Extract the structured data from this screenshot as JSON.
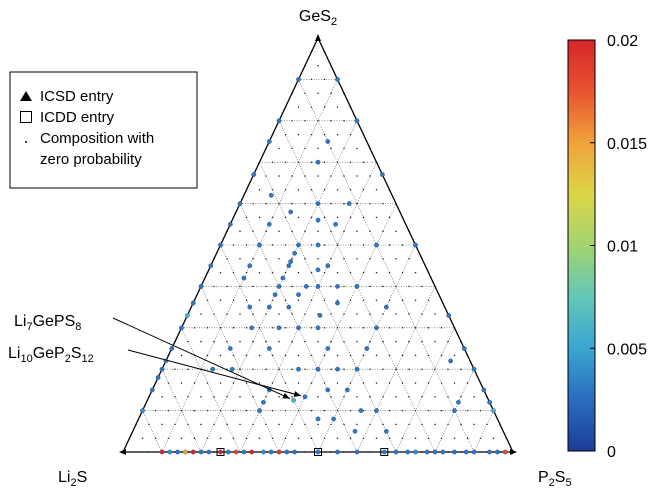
{
  "chart_data": {
    "type": "scatter",
    "subtype": "ternary",
    "vertices": {
      "top": {
        "main": "GeS",
        "sub": "2",
        "tail": ""
      },
      "left": {
        "main": "Li",
        "sub": "2",
        "tail": "S"
      },
      "right": {
        "main": "P",
        "sub": "2",
        "tail": "S",
        "sub2": "5"
      }
    },
    "grid": true,
    "grid_divisions": 10,
    "zero_probability_grid_divisions": 30,
    "legend": {
      "placement": "top-left",
      "entries": [
        {
          "marker": "triangle",
          "text": "ICSD entry"
        },
        {
          "marker": "square",
          "text": "ICDD entry"
        },
        {
          "marker": "dot",
          "text": "Composition with"
        },
        {
          "marker": "none",
          "text": "zero probability"
        }
      ]
    },
    "colorbar": {
      "range": [
        0,
        0.02
      ],
      "ticks": [
        "0.02",
        "0.015",
        "0.01",
        "0.005",
        "0"
      ],
      "tick_values": [
        0.02,
        0.015,
        0.01,
        0.005,
        0
      ],
      "colormap": "jet",
      "colors": [
        "#1c3c97",
        "#2b6dc0",
        "#3aa5d0",
        "#63c7b9",
        "#a3d46e",
        "#dcd648",
        "#f0a23c",
        "#e8532f",
        "#d7262b"
      ]
    },
    "annotations": [
      {
        "parts": [
          [
            "Li",
            ""
          ],
          [
            "7",
            "sub"
          ],
          [
            "GePS",
            ""
          ],
          [
            "8",
            "sub"
          ]
        ],
        "target": [
          0.5,
          0.125,
          0.375
        ]
      },
      {
        "parts": [
          [
            "Li",
            ""
          ],
          [
            "10",
            "sub"
          ],
          [
            "GeP",
            ""
          ],
          [
            "2",
            "sub"
          ],
          [
            "S",
            ""
          ],
          [
            "12",
            "sub"
          ]
        ],
        "target": [
          0.4667,
          0.1333,
          0.4
        ]
      }
    ],
    "points_note": "each point: [Li2S fraction, GeS2 fraction, P2S5 fraction, probability]",
    "points": [
      [
        0.9,
        0.0,
        0.1,
        0.02
      ],
      [
        0.88,
        0.0,
        0.12,
        0.004
      ],
      [
        0.86,
        0.0,
        0.14,
        0.003
      ],
      [
        0.84,
        0.0,
        0.16,
        0.015
      ],
      [
        0.82,
        0.0,
        0.18,
        0.02
      ],
      [
        0.8,
        0.0,
        0.2,
        0.003
      ],
      [
        0.78,
        0.0,
        0.22,
        0.003
      ],
      [
        0.75,
        0.0,
        0.25,
        0.02
      ],
      [
        0.73,
        0.0,
        0.27,
        0.003
      ],
      [
        0.71,
        0.0,
        0.29,
        0.018
      ],
      [
        0.69,
        0.0,
        0.31,
        0.003
      ],
      [
        0.67,
        0.0,
        0.33,
        0.02
      ],
      [
        0.64,
        0.0,
        0.36,
        0.004
      ],
      [
        0.62,
        0.0,
        0.38,
        0.003
      ],
      [
        0.6,
        0.0,
        0.4,
        0.019
      ],
      [
        0.58,
        0.0,
        0.42,
        0.003
      ],
      [
        0.56,
        0.0,
        0.44,
        0.003
      ],
      [
        0.5,
        0.0,
        0.5,
        0.003
      ],
      [
        0.45,
        0.0,
        0.55,
        0.003
      ],
      [
        0.4,
        0.0,
        0.6,
        0.003
      ],
      [
        0.33,
        0.0,
        0.67,
        0.003
      ],
      [
        0.3,
        0.0,
        0.7,
        0.003
      ],
      [
        0.27,
        0.0,
        0.73,
        0.003
      ],
      [
        0.25,
        0.0,
        0.75,
        0.004
      ],
      [
        0.22,
        0.0,
        0.78,
        0.003
      ],
      [
        0.2,
        0.0,
        0.8,
        0.003
      ],
      [
        0.18,
        0.0,
        0.82,
        0.003
      ],
      [
        0.15,
        0.0,
        0.85,
        0.003
      ],
      [
        0.12,
        0.0,
        0.88,
        0.003
      ],
      [
        0.1,
        0.0,
        0.9,
        0.003
      ],
      [
        0.06,
        0.0,
        0.94,
        0.003
      ],
      [
        0.04,
        0.0,
        0.96,
        0.003
      ],
      [
        0.02,
        0.0,
        0.98,
        0.018
      ],
      [
        0.9,
        0.1,
        0.0,
        0.004
      ],
      [
        0.85,
        0.15,
        0.0,
        0.003
      ],
      [
        0.82,
        0.18,
        0.0,
        0.003
      ],
      [
        0.8,
        0.2,
        0.0,
        0.003
      ],
      [
        0.78,
        0.22,
        0.0,
        0.004
      ],
      [
        0.75,
        0.25,
        0.0,
        0.003
      ],
      [
        0.7,
        0.3,
        0.0,
        0.003
      ],
      [
        0.67,
        0.33,
        0.0,
        0.006
      ],
      [
        0.64,
        0.36,
        0.0,
        0.003
      ],
      [
        0.6,
        0.4,
        0.0,
        0.003
      ],
      [
        0.55,
        0.45,
        0.0,
        0.003
      ],
      [
        0.5,
        0.5,
        0.0,
        0.003
      ],
      [
        0.45,
        0.55,
        0.0,
        0.003
      ],
      [
        0.4,
        0.6,
        0.0,
        0.003
      ],
      [
        0.33,
        0.67,
        0.0,
        0.003
      ],
      [
        0.25,
        0.75,
        0.0,
        0.003
      ],
      [
        0.2,
        0.8,
        0.0,
        0.003
      ],
      [
        0.1,
        0.9,
        0.0,
        0.003
      ],
      [
        0.0,
        0.1,
        0.9,
        0.006
      ],
      [
        0.0,
        0.12,
        0.88,
        0.003
      ],
      [
        0.0,
        0.15,
        0.85,
        0.003
      ],
      [
        0.0,
        0.2,
        0.8,
        0.003
      ],
      [
        0.0,
        0.25,
        0.75,
        0.003
      ],
      [
        0.0,
        0.33,
        0.67,
        0.003
      ],
      [
        0.0,
        0.5,
        0.5,
        0.003
      ],
      [
        0.0,
        0.67,
        0.33,
        0.003
      ],
      [
        0.0,
        0.8,
        0.2,
        0.003
      ],
      [
        0.0,
        0.9,
        0.1,
        0.003
      ],
      [
        0.67,
        0.2,
        0.13,
        0.003
      ],
      [
        0.62,
        0.2,
        0.18,
        0.003
      ],
      [
        0.6,
        0.25,
        0.15,
        0.003
      ],
      [
        0.6,
        0.1,
        0.3,
        0.003
      ],
      [
        0.58,
        0.12,
        0.3,
        0.003
      ],
      [
        0.55,
        0.15,
        0.3,
        0.003
      ],
      [
        0.5,
        0.125,
        0.375,
        0.006
      ],
      [
        0.4667,
        0.1333,
        0.4,
        0.003
      ],
      [
        0.5,
        0.25,
        0.25,
        0.003
      ],
      [
        0.52,
        0.3,
        0.18,
        0.003
      ],
      [
        0.5,
        0.35,
        0.15,
        0.003
      ],
      [
        0.45,
        0.35,
        0.2,
        0.003
      ],
      [
        0.45,
        0.3,
        0.25,
        0.003
      ],
      [
        0.42,
        0.38,
        0.2,
        0.003
      ],
      [
        0.4,
        0.4,
        0.2,
        0.003
      ],
      [
        0.4,
        0.35,
        0.25,
        0.003
      ],
      [
        0.4,
        0.3,
        0.3,
        0.003
      ],
      [
        0.38,
        0.42,
        0.2,
        0.003
      ],
      [
        0.35,
        0.45,
        0.2,
        0.003
      ],
      [
        0.36,
        0.38,
        0.26,
        0.003
      ],
      [
        0.35,
        0.3,
        0.35,
        0.003
      ],
      [
        0.33,
        0.33,
        0.34,
        0.003
      ],
      [
        0.33,
        0.4,
        0.27,
        0.003
      ],
      [
        0.32,
        0.48,
        0.2,
        0.003
      ],
      [
        0.3,
        0.5,
        0.2,
        0.003
      ],
      [
        0.3,
        0.4,
        0.3,
        0.003
      ],
      [
        0.28,
        0.44,
        0.28,
        0.003
      ],
      [
        0.27,
        0.36,
        0.37,
        0.003
      ],
      [
        0.25,
        0.5,
        0.25,
        0.003
      ],
      [
        0.25,
        0.4,
        0.35,
        0.003
      ],
      [
        0.25,
        0.45,
        0.3,
        0.003
      ],
      [
        0.22,
        0.56,
        0.22,
        0.003
      ],
      [
        0.2,
        0.6,
        0.2,
        0.003
      ],
      [
        0.2,
        0.4,
        0.4,
        0.003
      ],
      [
        0.2,
        0.3,
        0.5,
        0.003
      ],
      [
        0.18,
        0.55,
        0.27,
        0.003
      ],
      [
        0.15,
        0.7,
        0.15,
        0.003
      ],
      [
        0.15,
        0.35,
        0.5,
        0.003
      ],
      [
        0.12,
        0.6,
        0.28,
        0.003
      ],
      [
        0.1,
        0.75,
        0.15,
        0.003
      ],
      [
        0.1,
        0.5,
        0.4,
        0.003
      ],
      [
        0.45,
        0.45,
        0.1,
        0.003
      ],
      [
        0.4,
        0.5,
        0.1,
        0.003
      ],
      [
        0.35,
        0.55,
        0.1,
        0.003
      ],
      [
        0.35,
        0.2,
        0.45,
        0.003
      ],
      [
        0.35,
        0.15,
        0.5,
        0.003
      ],
      [
        0.34,
        0.1,
        0.56,
        0.003
      ],
      [
        0.35,
        0.25,
        0.4,
        0.003
      ],
      [
        0.3,
        0.2,
        0.5,
        0.003
      ],
      [
        0.3,
        0.1,
        0.6,
        0.003
      ],
      [
        0.3,
        0.05,
        0.65,
        0.003
      ],
      [
        0.25,
        0.25,
        0.5,
        0.003
      ],
      [
        0.4,
        0.2,
        0.4,
        0.003
      ],
      [
        0.45,
        0.2,
        0.35,
        0.003
      ],
      [
        0.4,
        0.15,
        0.45,
        0.003
      ],
      [
        0.38,
        0.05,
        0.57,
        0.003
      ],
      [
        0.46,
        0.08,
        0.46,
        0.003
      ],
      [
        0.42,
        0.08,
        0.5,
        0.003
      ],
      [
        0.1,
        0.1,
        0.8,
        0.003
      ],
      [
        0.08,
        0.12,
        0.8,
        0.003
      ],
      [
        0.05,
        0.22,
        0.73,
        0.003
      ],
      [
        0.48,
        0.42,
        0.1,
        0.003
      ],
      [
        0.31,
        0.62,
        0.07,
        0.003
      ],
      [
        0.28,
        0.58,
        0.14,
        0.003
      ],
      [
        0.34,
        0.46,
        0.2,
        0.003
      ]
    ]
  }
}
